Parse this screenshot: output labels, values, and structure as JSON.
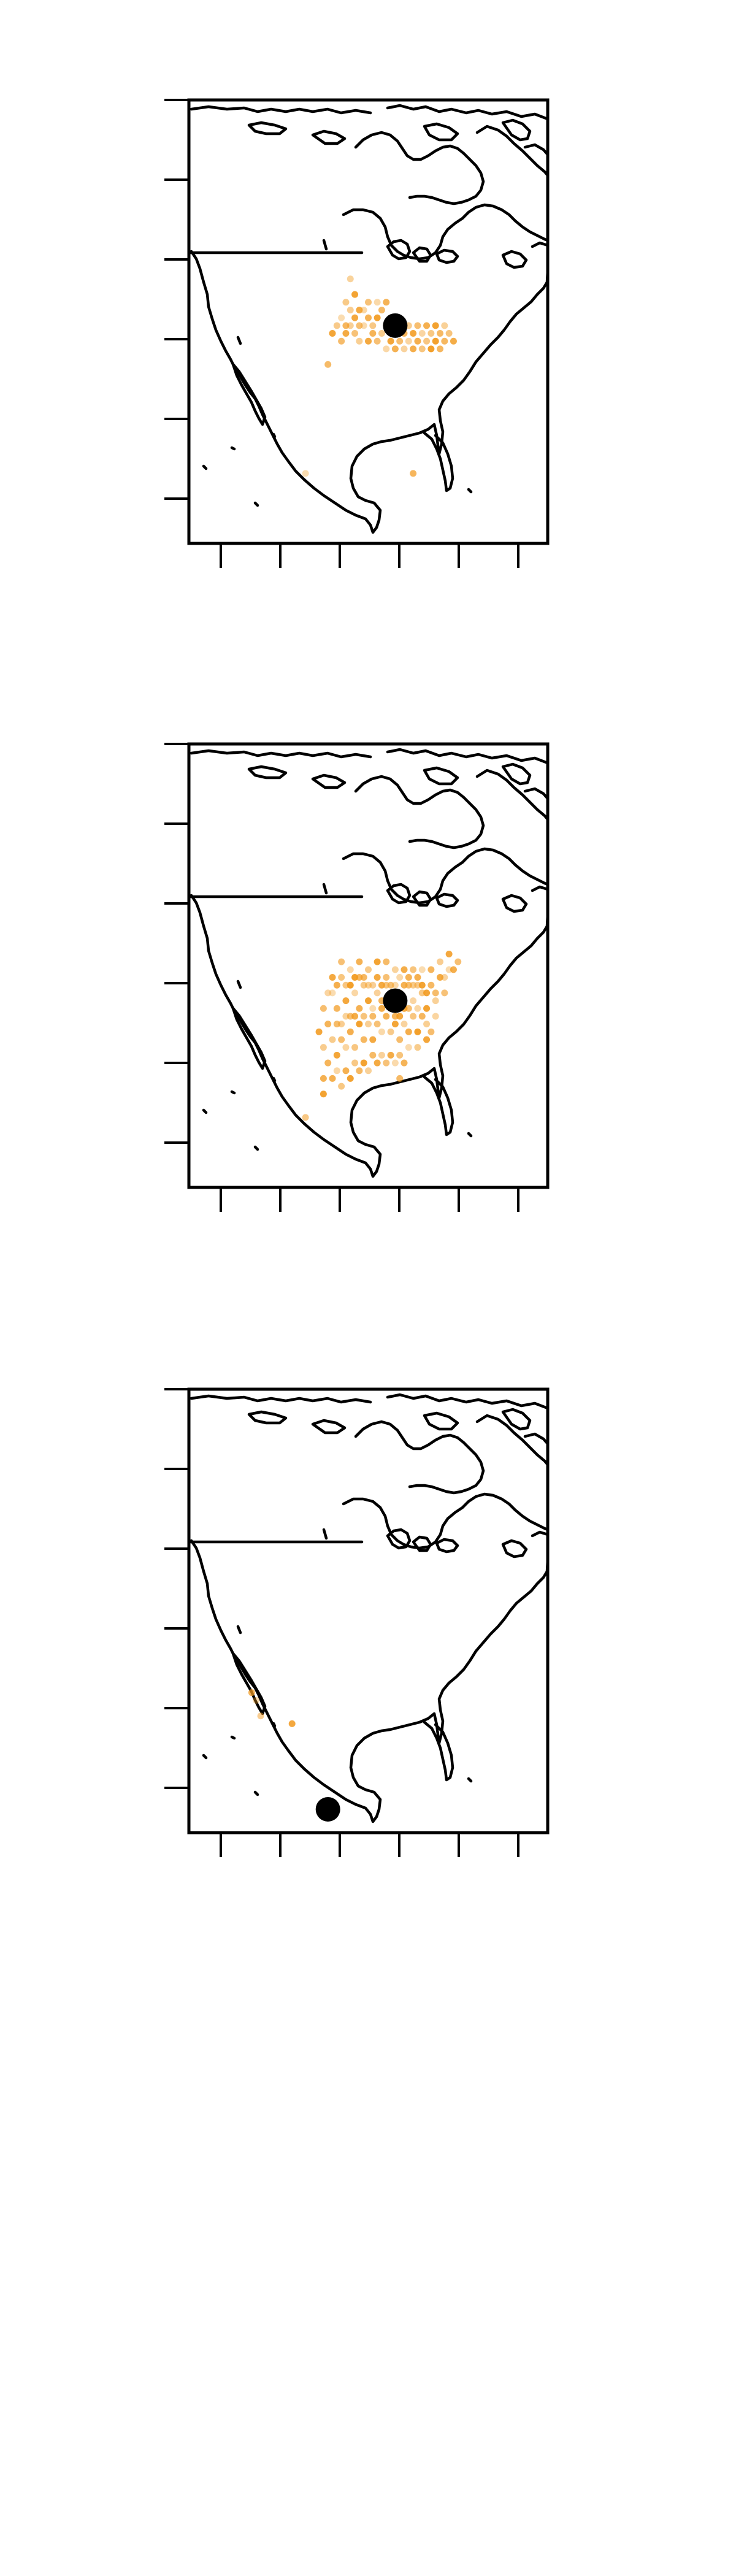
{
  "maps": [
    {
      "id": "map-1",
      "marker": {
        "lon": -84,
        "lat": 43
      },
      "points": [
        [
          -96,
          44
        ],
        [
          -95,
          43
        ],
        [
          -94,
          45
        ],
        [
          -93,
          44
        ],
        [
          -92,
          43
        ],
        [
          -91,
          45
        ],
        [
          -90,
          44
        ],
        [
          -89,
          43
        ],
        [
          -88,
          44
        ],
        [
          -87,
          45
        ],
        [
          -86,
          43
        ],
        [
          -85,
          44
        ],
        [
          -84,
          42
        ],
        [
          -83,
          43
        ],
        [
          -82,
          42
        ],
        [
          -81,
          43
        ],
        [
          -80,
          42
        ],
        [
          -79,
          43
        ],
        [
          -78,
          42
        ],
        [
          -77,
          43
        ],
        [
          -76,
          42
        ],
        [
          -75,
          43
        ],
        [
          -74,
          42
        ],
        [
          -73,
          43
        ],
        [
          -95,
          42
        ],
        [
          -93,
          42
        ],
        [
          -91,
          43
        ],
        [
          -89,
          42
        ],
        [
          -87,
          42
        ],
        [
          -85,
          41
        ],
        [
          -83,
          41
        ],
        [
          -81,
          41
        ],
        [
          -79,
          41
        ],
        [
          -77,
          41
        ],
        [
          -75,
          41
        ],
        [
          -73,
          41
        ],
        [
          -94,
          43
        ],
        [
          -92,
          45
        ],
        [
          -90,
          46
        ],
        [
          -88,
          46
        ],
        [
          -86,
          46
        ],
        [
          -97,
          43
        ],
        [
          -98,
          42
        ],
        [
          -96,
          41
        ],
        [
          -82,
          40
        ],
        [
          -80,
          40
        ],
        [
          -78,
          40
        ],
        [
          -76,
          40
        ],
        [
          -74,
          40
        ],
        [
          -92,
          41
        ],
        [
          -90,
          41
        ],
        [
          -88,
          41
        ],
        [
          -86,
          40
        ],
        [
          -84,
          40
        ],
        [
          -95,
          46
        ],
        [
          -93,
          47
        ],
        [
          -99,
          38
        ],
        [
          -94,
          49
        ],
        [
          -71,
          41
        ],
        [
          -72,
          42
        ],
        [
          -104,
          24
        ],
        [
          -80,
          24
        ]
      ]
    },
    {
      "id": "map-2",
      "marker": {
        "lon": -84,
        "lat": 39
      },
      "points": [
        [
          -98,
          40
        ],
        [
          -97,
          38
        ],
        [
          -96,
          36
        ],
        [
          -95,
          39
        ],
        [
          -94,
          37
        ],
        [
          -93,
          40
        ],
        [
          -92,
          38
        ],
        [
          -91,
          41
        ],
        [
          -90,
          39
        ],
        [
          -89,
          37
        ],
        [
          -88,
          40
        ],
        [
          -87,
          38
        ],
        [
          -86,
          41
        ],
        [
          -85,
          39
        ],
        [
          -84,
          37
        ],
        [
          -83,
          40
        ],
        [
          -82,
          38
        ],
        [
          -81,
          41
        ],
        [
          -80,
          39
        ],
        [
          -79,
          42
        ],
        [
          -78,
          40
        ],
        [
          -77,
          38
        ],
        [
          -76,
          41
        ],
        [
          -75,
          39
        ],
        [
          -74,
          42
        ],
        [
          -73,
          40
        ],
        [
          -72,
          43
        ],
        [
          -99,
          36
        ],
        [
          -98,
          34
        ],
        [
          -97,
          32
        ],
        [
          -96,
          34
        ],
        [
          -95,
          33
        ],
        [
          -94,
          35
        ],
        [
          -93,
          33
        ],
        [
          -92,
          36
        ],
        [
          -91,
          34
        ],
        [
          -90,
          36
        ],
        [
          -89,
          34
        ],
        [
          -88,
          36
        ],
        [
          -87,
          35
        ],
        [
          -86,
          37
        ],
        [
          -85,
          35
        ],
        [
          -84,
          36
        ],
        [
          -83,
          34
        ],
        [
          -82,
          36
        ],
        [
          -81,
          35
        ],
        [
          -80,
          37
        ],
        [
          -79,
          35
        ],
        [
          -78,
          37
        ],
        [
          -77,
          36
        ],
        [
          -98,
          42
        ],
        [
          -96,
          44
        ],
        [
          -94,
          43
        ],
        [
          -92,
          44
        ],
        [
          -90,
          43
        ],
        [
          -88,
          44
        ],
        [
          -86,
          44
        ],
        [
          -84,
          43
        ],
        [
          -82,
          43
        ],
        [
          -80,
          43
        ],
        [
          -78,
          43
        ],
        [
          -76,
          43
        ],
        [
          -74,
          44
        ],
        [
          -72,
          45
        ],
        [
          -70,
          44
        ],
        [
          -97,
          30
        ],
        [
          -95,
          30
        ],
        [
          -93,
          31
        ],
        [
          -91,
          31
        ],
        [
          -89,
          32
        ],
        [
          -87,
          32
        ],
        [
          -85,
          32
        ],
        [
          -83,
          32
        ],
        [
          -81,
          33
        ],
        [
          -99,
          31
        ],
        [
          -100,
          33
        ],
        [
          -101,
          35
        ],
        [
          -100,
          38
        ],
        [
          -99,
          40
        ],
        [
          -98,
          29
        ],
        [
          -96,
          28
        ],
        [
          -94,
          29
        ],
        [
          -92,
          30
        ],
        [
          -90,
          30
        ],
        [
          -88,
          31
        ],
        [
          -86,
          31
        ],
        [
          -84,
          31
        ],
        [
          -82,
          31
        ],
        [
          -79,
          33
        ],
        [
          -77,
          34
        ],
        [
          -76,
          35
        ],
        [
          -75,
          37
        ],
        [
          -97,
          41
        ],
        [
          -95,
          41
        ],
        [
          -93,
          42
        ],
        [
          -91,
          42
        ],
        [
          -89,
          41
        ],
        [
          -87,
          41
        ],
        [
          -85,
          41
        ],
        [
          -83,
          42
        ],
        [
          -81,
          42
        ],
        [
          -79,
          41
        ],
        [
          -77,
          40
        ],
        [
          -75,
          40
        ],
        [
          -73,
          42
        ],
        [
          -71,
          43
        ],
        [
          -96,
          42
        ],
        [
          -94,
          41
        ],
        [
          -92,
          42
        ],
        [
          -90,
          41
        ],
        [
          -88,
          42
        ],
        [
          -86,
          42
        ],
        [
          -84,
          41
        ],
        [
          -82,
          41
        ],
        [
          -80,
          41
        ],
        [
          -78,
          41
        ],
        [
          -97,
          36
        ],
        [
          -95,
          37
        ],
        [
          -93,
          37
        ],
        [
          -91,
          37
        ],
        [
          -89,
          38
        ],
        [
          -87,
          39
        ],
        [
          -85,
          38
        ],
        [
          -83,
          37
        ],
        [
          -81,
          38
        ],
        [
          -79,
          38
        ],
        [
          -100,
          29
        ],
        [
          -104,
          24
        ],
        [
          -100,
          27
        ],
        [
          -83,
          29
        ]
      ]
    },
    {
      "id": "map-3",
      "marker": {
        "lon": -99,
        "lat": 18
      },
      "points": [
        [
          -115,
          32
        ],
        [
          -116,
          33
        ],
        [
          -114,
          30
        ],
        [
          -107,
          29
        ]
      ]
    }
  ]
}
